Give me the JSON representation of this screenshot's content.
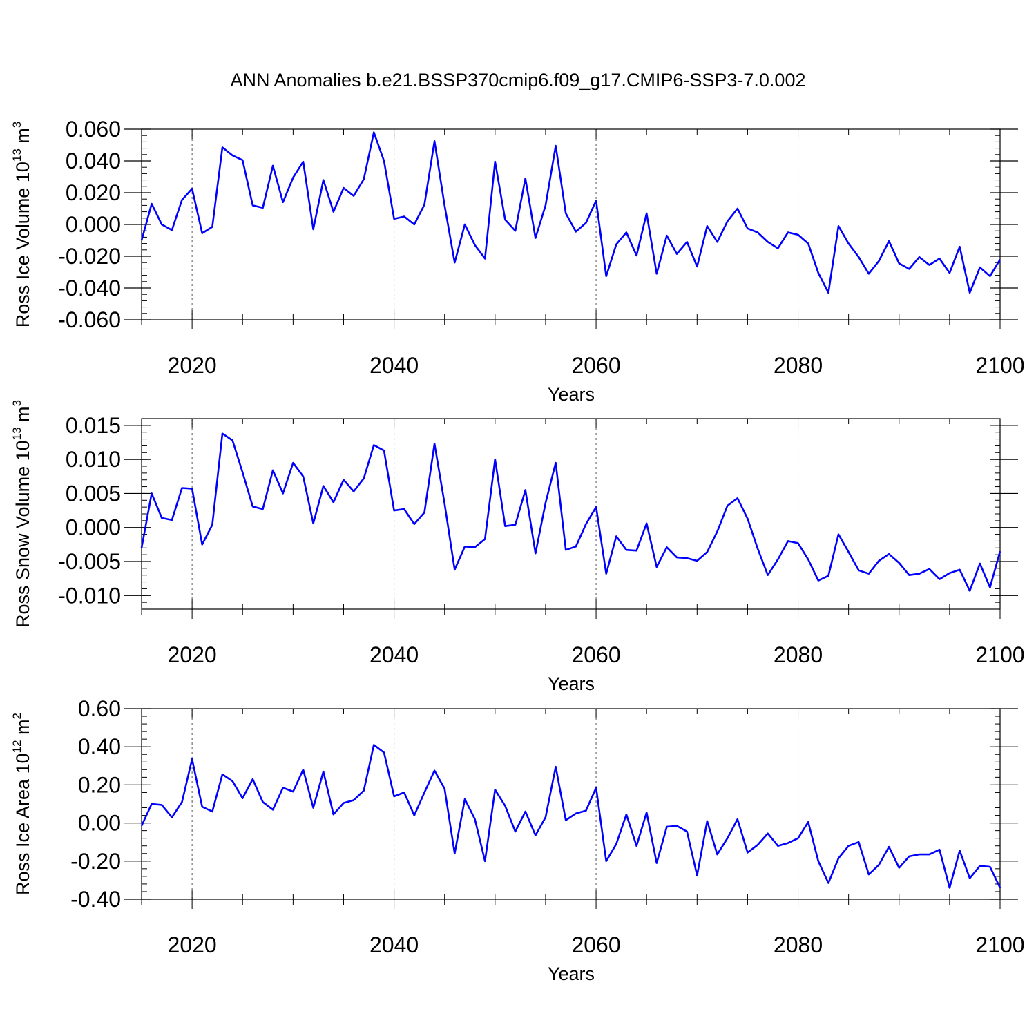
{
  "figure_title": "ANN Anomalies b.e21.BSSP370cmip6.f09_g17.CMIP6-SSP3-7.0.002",
  "colors": {
    "line": "#0000ff",
    "axis": "#000000",
    "grid": "#555555"
  },
  "chart_data": [
    {
      "type": "line",
      "ylabel": "Ross Ice Volume 10",
      "ylabel_exp": "13",
      "ylabel_unit": " m",
      "ylabel_unit_exp": "3",
      "xlabel": "Years",
      "xlim": [
        2015,
        2100
      ],
      "ylim": [
        -0.06,
        0.06
      ],
      "x_ticks": [
        2020,
        2040,
        2060,
        2080,
        2100
      ],
      "x_tick_labels": [
        "2020",
        "2040",
        "2060",
        "2080",
        "2100"
      ],
      "y_ticks": [
        0.06,
        0.04,
        0.02,
        0.0,
        -0.02,
        -0.04,
        -0.06
      ],
      "y_tick_labels": [
        "0.060",
        "0.040",
        "0.020",
        "0.000",
        "-0.020",
        "-0.040",
        "-0.060"
      ],
      "x_start": 2015,
      "values": [
        -0.01,
        0.013,
        0.0,
        -0.0035,
        0.0155,
        0.0225,
        -0.0055,
        -0.0015,
        0.0485,
        0.0435,
        0.0405,
        0.012,
        0.0105,
        0.037,
        0.014,
        0.0295,
        0.0395,
        -0.003,
        0.028,
        0.008,
        0.023,
        0.018,
        0.0285,
        0.058,
        0.04,
        0.0035,
        0.005,
        0.0,
        0.0125,
        0.0525,
        0.012,
        -0.024,
        0.0,
        -0.013,
        -0.0215,
        0.0395,
        0.003,
        -0.004,
        0.029,
        -0.0085,
        0.012,
        0.0495,
        0.007,
        -0.0045,
        0.001,
        0.015,
        -0.0325,
        -0.0125,
        -0.005,
        -0.0195,
        0.007,
        -0.031,
        -0.007,
        -0.0185,
        -0.011,
        -0.0265,
        -0.001,
        -0.011,
        0.002,
        0.01,
        -0.0025,
        -0.005,
        -0.011,
        -0.015,
        -0.005,
        -0.0065,
        -0.012,
        -0.0305,
        -0.043,
        -0.001,
        -0.012,
        -0.0205,
        -0.031,
        -0.023,
        -0.0105,
        -0.0245,
        -0.028,
        -0.0205,
        -0.0255,
        -0.0215,
        -0.0305,
        -0.014,
        -0.043,
        -0.027,
        -0.0325,
        -0.022
      ]
    },
    {
      "type": "line",
      "ylabel": "Ross Snow Volume 10",
      "ylabel_exp": "13",
      "ylabel_unit": " m",
      "ylabel_unit_exp": "3",
      "xlabel": "Years",
      "xlim": [
        2015,
        2100
      ],
      "ylim": [
        -0.012,
        0.016
      ],
      "x_ticks": [
        2020,
        2040,
        2060,
        2080,
        2100
      ],
      "x_tick_labels": [
        "2020",
        "2040",
        "2060",
        "2080",
        "2100"
      ],
      "y_ticks": [
        0.015,
        0.01,
        0.005,
        0.0,
        -0.005,
        -0.01
      ],
      "y_tick_labels": [
        "0.015",
        "0.010",
        "0.005",
        "0.000",
        "-0.005",
        "-0.010"
      ],
      "x_start": 2015,
      "values": [
        -0.003,
        0.005,
        0.0014,
        0.0011,
        0.0058,
        0.0057,
        -0.0025,
        0.0004,
        0.0138,
        0.0128,
        0.0081,
        0.0031,
        0.0027,
        0.0084,
        0.005,
        0.0095,
        0.0075,
        0.0006,
        0.0061,
        0.0037,
        0.007,
        0.0053,
        0.0072,
        0.0121,
        0.0113,
        0.0025,
        0.0027,
        0.0005,
        0.0022,
        0.0123,
        0.0035,
        -0.0062,
        -0.0028,
        -0.0029,
        -0.0017,
        0.01,
        0.0002,
        0.0004,
        0.0055,
        -0.0038,
        0.0036,
        0.0095,
        -0.0033,
        -0.0028,
        0.0005,
        0.003,
        -0.0068,
        -0.0013,
        -0.0033,
        -0.0034,
        0.0006,
        -0.0058,
        -0.0029,
        -0.0044,
        -0.0045,
        -0.0049,
        -0.0036,
        -0.0006,
        0.0032,
        0.0043,
        0.0013,
        -0.0031,
        -0.007,
        -0.0047,
        -0.002,
        -0.0023,
        -0.0047,
        -0.0078,
        -0.0071,
        -0.001,
        -0.0036,
        -0.0063,
        -0.0068,
        -0.0049,
        -0.0039,
        -0.0052,
        -0.007,
        -0.0068,
        -0.0061,
        -0.0076,
        -0.0067,
        -0.0062,
        -0.0093,
        -0.0053,
        -0.0088,
        -0.0035
      ]
    },
    {
      "type": "line",
      "ylabel": "Ross Ice Area 10",
      "ylabel_exp": "12",
      "ylabel_unit": " m",
      "ylabel_unit_exp": "2",
      "xlabel": "Years",
      "xlim": [
        2015,
        2100
      ],
      "ylim": [
        -0.4,
        0.6
      ],
      "x_ticks": [
        2020,
        2040,
        2060,
        2080,
        2100
      ],
      "x_tick_labels": [
        "2020",
        "2040",
        "2060",
        "2080",
        "2100"
      ],
      "y_ticks": [
        0.6,
        0.4,
        0.2,
        0.0,
        -0.2,
        -0.4
      ],
      "y_tick_labels": [
        "0.60",
        "0.40",
        "0.20",
        "0.00",
        "-0.20",
        "-0.40"
      ],
      "x_start": 2015,
      "values": [
        -0.015,
        0.1,
        0.095,
        0.03,
        0.11,
        0.335,
        0.085,
        0.06,
        0.255,
        0.22,
        0.13,
        0.23,
        0.11,
        0.07,
        0.185,
        0.165,
        0.28,
        0.08,
        0.27,
        0.045,
        0.105,
        0.12,
        0.17,
        0.41,
        0.37,
        0.14,
        0.16,
        0.04,
        0.16,
        0.275,
        0.18,
        -0.16,
        0.125,
        0.02,
        -0.2,
        0.175,
        0.09,
        -0.045,
        0.06,
        -0.065,
        0.03,
        0.295,
        0.015,
        0.05,
        0.065,
        0.185,
        -0.2,
        -0.11,
        0.045,
        -0.12,
        0.055,
        -0.21,
        -0.02,
        -0.015,
        -0.045,
        -0.275,
        0.01,
        -0.165,
        -0.08,
        0.02,
        -0.155,
        -0.115,
        -0.055,
        -0.12,
        -0.105,
        -0.08,
        0.005,
        -0.2,
        -0.315,
        -0.185,
        -0.12,
        -0.1,
        -0.27,
        -0.22,
        -0.125,
        -0.235,
        -0.175,
        -0.165,
        -0.165,
        -0.14,
        -0.34,
        -0.145,
        -0.29,
        -0.225,
        -0.23,
        -0.34
      ]
    }
  ]
}
